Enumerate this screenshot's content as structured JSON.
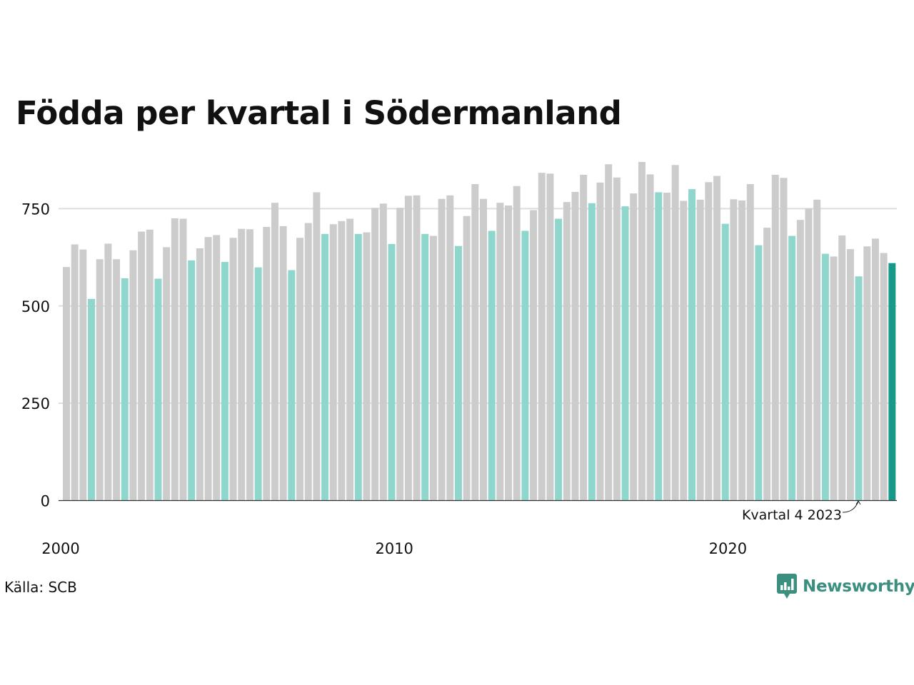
{
  "title": "Födda per kvartal i Södermanland",
  "source": "Källa: SCB",
  "logo": {
    "text": "Newsworthy",
    "icon": "bar-chart-speech-icon",
    "color": "#3a8f7f"
  },
  "colors": {
    "default_bar": "#cccccc",
    "q4_bar": "#8fd6cc",
    "latest_bar": "#17998a",
    "grid": "#dddddd",
    "axis": "#333333"
  },
  "chart_data": {
    "type": "bar",
    "title": "Födda per kvartal i Södermanland",
    "xlabel": "",
    "ylabel": "",
    "ylim": [
      0,
      900
    ],
    "yticks": [
      0,
      250,
      500,
      750
    ],
    "xtick_labels": [
      "2000",
      "2010",
      "2020"
    ],
    "grid": true,
    "highlight": "Quarter 4 of each year in turquoise, latest quarter in dark teal",
    "annotation": "Kvartal 4 2023",
    "categories": [
      "2000 Q1",
      "2000 Q2",
      "2000 Q3",
      "2000 Q4",
      "2001 Q1",
      "2001 Q2",
      "2001 Q3",
      "2001 Q4",
      "2002 Q1",
      "2002 Q2",
      "2002 Q3",
      "2002 Q4",
      "2003 Q1",
      "2003 Q2",
      "2003 Q3",
      "2003 Q4",
      "2004 Q1",
      "2004 Q2",
      "2004 Q3",
      "2004 Q4",
      "2005 Q1",
      "2005 Q2",
      "2005 Q3",
      "2005 Q4",
      "2006 Q1",
      "2006 Q2",
      "2006 Q3",
      "2006 Q4",
      "2007 Q1",
      "2007 Q2",
      "2007 Q3",
      "2007 Q4",
      "2008 Q1",
      "2008 Q2",
      "2008 Q3",
      "2008 Q4",
      "2009 Q1",
      "2009 Q2",
      "2009 Q3",
      "2009 Q4",
      "2010 Q1",
      "2010 Q2",
      "2010 Q3",
      "2010 Q4",
      "2011 Q1",
      "2011 Q2",
      "2011 Q3",
      "2011 Q4",
      "2012 Q1",
      "2012 Q2",
      "2012 Q3",
      "2012 Q4",
      "2013 Q1",
      "2013 Q2",
      "2013 Q3",
      "2013 Q4",
      "2014 Q1",
      "2014 Q2",
      "2014 Q3",
      "2014 Q4",
      "2015 Q1",
      "2015 Q2",
      "2015 Q3",
      "2015 Q4",
      "2016 Q1",
      "2016 Q2",
      "2016 Q3",
      "2016 Q4",
      "2017 Q1",
      "2017 Q2",
      "2017 Q3",
      "2017 Q4",
      "2018 Q1",
      "2018 Q2",
      "2018 Q3",
      "2018 Q4",
      "2019 Q1",
      "2019 Q2",
      "2019 Q3",
      "2019 Q4",
      "2020 Q1",
      "2020 Q2",
      "2020 Q3",
      "2020 Q4",
      "2021 Q1",
      "2021 Q2",
      "2021 Q3",
      "2021 Q4",
      "2022 Q1",
      "2022 Q2",
      "2022 Q3",
      "2022 Q4",
      "2023 Q1",
      "2023 Q2",
      "2023 Q3",
      "2023 Q4",
      "2024 Q1",
      "2024 Q2",
      "2024 Q3",
      "2024 Q4"
    ],
    "values": [
      600,
      658,
      645,
      518,
      620,
      660,
      620,
      571,
      643,
      691,
      696,
      570,
      651,
      725,
      724,
      617,
      648,
      677,
      682,
      613,
      675,
      698,
      697,
      599,
      703,
      765,
      705,
      592,
      675,
      713,
      792,
      685,
      710,
      718,
      724,
      685,
      689,
      752,
      763,
      659,
      752,
      783,
      784,
      685,
      680,
      775,
      784,
      654,
      731,
      813,
      775,
      693,
      765,
      758,
      808,
      693,
      746,
      842,
      840,
      724,
      767,
      793,
      837,
      764,
      817,
      864,
      830,
      756,
      789,
      870,
      838,
      792,
      791,
      862,
      770,
      800,
      773,
      818,
      834,
      711,
      774,
      771,
      813,
      656,
      701,
      837,
      829,
      680,
      721,
      750,
      773,
      634,
      627,
      681,
      646,
      576,
      653,
      673,
      636,
      610
    ]
  }
}
